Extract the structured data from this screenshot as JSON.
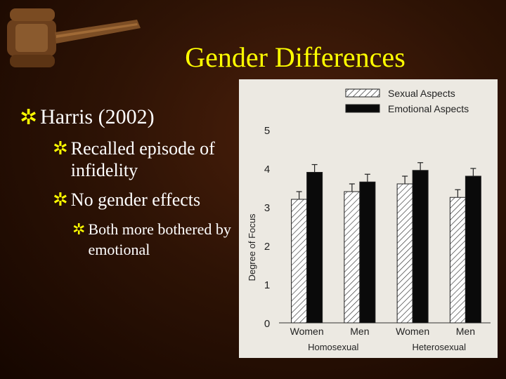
{
  "slide": {
    "title": "Gender Differences",
    "bullets": [
      {
        "level": 1,
        "text": "Harris (2002)"
      },
      {
        "level": 2,
        "text": "Recalled episode of infidelity"
      },
      {
        "level": 2,
        "text": "No gender effects"
      },
      {
        "level": 3,
        "text": "Both more bothered by emotional"
      }
    ]
  },
  "colors": {
    "title": "#ffff00",
    "text": "#ffffff",
    "bullet_mark": "#ffff00"
  },
  "chart_data": {
    "type": "bar",
    "categories": [
      "Women",
      "Men",
      "Women",
      "Men"
    ],
    "groups": [
      {
        "label": "Homosexual"
      },
      {
        "label": "Heterosexual"
      }
    ],
    "series": [
      {
        "name": "Sexual Aspects",
        "values": [
          3.2,
          3.4,
          3.6,
          3.25
        ],
        "errors": [
          0.2,
          0.2,
          0.2,
          0.2
        ],
        "pattern": "hatched"
      },
      {
        "name": "Emotional Aspects",
        "values": [
          3.9,
          3.65,
          3.95,
          3.8
        ],
        "errors": [
          0.2,
          0.2,
          0.2,
          0.2
        ],
        "pattern": "solid"
      }
    ],
    "title": "",
    "ylabel": "Degree of Focus",
    "ylim": [
      0,
      5
    ],
    "yticks": [
      "0",
      "1",
      "2",
      "3",
      "4",
      "5"
    ],
    "legend": "top-right",
    "grid": false
  }
}
